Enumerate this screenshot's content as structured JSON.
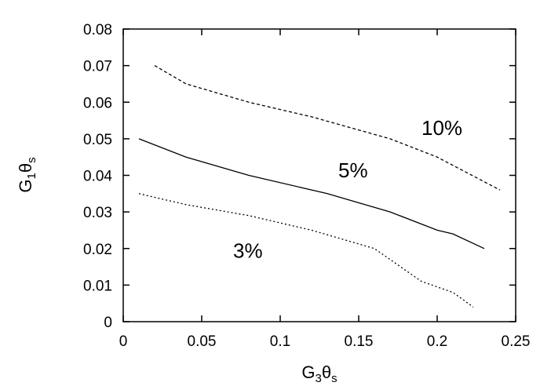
{
  "chart_data": {
    "type": "line",
    "title": "",
    "xlabel": {
      "main": "G",
      "sub1": "3",
      "theta": "θ",
      "sub2": "s"
    },
    "ylabel": {
      "main": "G",
      "sub1": "1",
      "theta": "θ",
      "sub2": "s"
    },
    "xlim": [
      0,
      0.25
    ],
    "ylim": [
      0,
      0.08
    ],
    "xticks": [
      "0",
      "0.05",
      "0.1",
      "0.15",
      "0.2",
      "0.25"
    ],
    "yticks": [
      "0",
      "0.01",
      "0.02",
      "0.03",
      "0.04",
      "0.05",
      "0.06",
      "0.07",
      "0.08"
    ],
    "grid": false,
    "series": [
      {
        "name": "10%",
        "style": "dashed",
        "label_at": [
          0.19,
          0.051
        ],
        "points": [
          [
            0.02,
            0.07
          ],
          [
            0.04,
            0.065
          ],
          [
            0.08,
            0.06
          ],
          [
            0.12,
            0.056
          ],
          [
            0.17,
            0.05
          ],
          [
            0.2,
            0.045
          ],
          [
            0.24,
            0.036
          ]
        ]
      },
      {
        "name": "5%",
        "style": "solid",
        "label_at": [
          0.137,
          0.0395
        ],
        "points": [
          [
            0.01,
            0.05
          ],
          [
            0.04,
            0.045
          ],
          [
            0.08,
            0.04
          ],
          [
            0.13,
            0.035
          ],
          [
            0.17,
            0.03
          ],
          [
            0.2,
            0.025
          ],
          [
            0.21,
            0.024
          ],
          [
            0.23,
            0.02
          ]
        ]
      },
      {
        "name": "3%",
        "style": "dotted",
        "label_at": [
          0.07,
          0.0175
        ],
        "points": [
          [
            0.01,
            0.035
          ],
          [
            0.04,
            0.032
          ],
          [
            0.08,
            0.029
          ],
          [
            0.12,
            0.025
          ],
          [
            0.16,
            0.02
          ],
          [
            0.19,
            0.011
          ],
          [
            0.21,
            0.008
          ],
          [
            0.223,
            0.004
          ]
        ]
      }
    ]
  }
}
